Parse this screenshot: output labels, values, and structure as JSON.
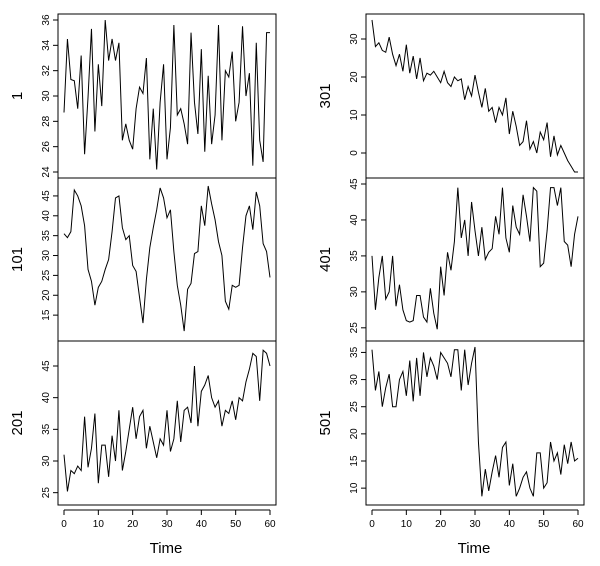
{
  "chart_data": {
    "type": "line",
    "x_axis": {
      "label": "Time",
      "range": [
        0,
        60
      ],
      "ticks": [
        0,
        10,
        20,
        30,
        40,
        50,
        60
      ]
    },
    "panels": [
      {
        "label": "1",
        "column": 0,
        "row": 0,
        "ylim": [
          24,
          36
        ],
        "yticks": [
          24,
          26,
          28,
          30,
          32,
          34,
          36
        ],
        "values": [
          28.7,
          34.5,
          31.3,
          31.2,
          29.0,
          33.2,
          25.4,
          29.9,
          35.3,
          27.2,
          32.5,
          29.2,
          36.0,
          32.8,
          34.5,
          32.8,
          34.2,
          26.5,
          27.8,
          26.5,
          25.8,
          29.0,
          30.7,
          30.2,
          33.0,
          25.0,
          29.0,
          24.2,
          29.5,
          32.5,
          25.0,
          27.5,
          35.6,
          28.5,
          29.0,
          27.8,
          26.2,
          35.0,
          29.5,
          27.0,
          33.7,
          25.6,
          31.6,
          26.2,
          28.5,
          35.6,
          26.5,
          32.0,
          31.5,
          33.5,
          28.0,
          29.5,
          35.5,
          30.0,
          31.8,
          24.5,
          34.2,
          26.5,
          24.8,
          35.0,
          35.0
        ]
      },
      {
        "label": "101",
        "column": 0,
        "row": 1,
        "ylim": [
          10,
          48
        ],
        "yticks": [
          15,
          20,
          25,
          30,
          35,
          40,
          45
        ],
        "values": [
          35.5,
          34.5,
          36.0,
          46.5,
          45.0,
          42.5,
          37.5,
          26.5,
          23.5,
          17.5,
          22.0,
          23.5,
          26.5,
          29.0,
          36.0,
          44.5,
          45.0,
          37.0,
          34.0,
          35.0,
          27.5,
          26.0,
          19.5,
          13.0,
          24.0,
          32.0,
          37.0,
          41.5,
          47.0,
          44.5,
          39.5,
          41.5,
          31.0,
          22.5,
          17.5,
          11.0,
          21.5,
          23.0,
          30.5,
          31.0,
          42.5,
          37.5,
          47.5,
          43.0,
          39.0,
          33.5,
          30.0,
          18.5,
          16.5,
          22.5,
          22.0,
          22.5,
          32.0,
          40.0,
          42.5,
          36.5,
          46.0,
          42.5,
          33.0,
          31.0,
          24.5
        ]
      },
      {
        "label": "201",
        "column": 0,
        "row": 2,
        "ylim": [
          24,
          48
        ],
        "yticks": [
          25,
          30,
          35,
          40,
          45
        ],
        "values": [
          31.0,
          25.2,
          28.5,
          28.0,
          29.2,
          28.5,
          37.0,
          29.0,
          32.0,
          37.5,
          26.5,
          32.5,
          32.5,
          27.5,
          34.0,
          30.0,
          38.0,
          28.5,
          31.5,
          35.0,
          38.5,
          33.5,
          37.0,
          38.0,
          32.0,
          35.5,
          33.0,
          30.5,
          33.5,
          32.5,
          38.0,
          31.5,
          33.5,
          39.5,
          33.0,
          38.0,
          38.5,
          36.0,
          45.0,
          35.5,
          41.0,
          42.0,
          43.5,
          40.0,
          38.5,
          39.5,
          35.5,
          38.0,
          37.5,
          39.5,
          36.5,
          40.0,
          39.5,
          42.5,
          44.5,
          47.0,
          46.5,
          39.5,
          47.5,
          47.0,
          45.0
        ]
      },
      {
        "label": "301",
        "column": 1,
        "row": 0,
        "ylim": [
          -5,
          35
        ],
        "yticks": [
          0,
          10,
          20,
          30
        ],
        "values": [
          35.0,
          28.0,
          29.0,
          27.0,
          26.5,
          30.5,
          26.0,
          23.0,
          26.0,
          21.5,
          28.5,
          21.0,
          25.5,
          19.5,
          25.0,
          19.0,
          21.0,
          20.5,
          21.5,
          20.0,
          18.5,
          21.5,
          18.5,
          17.5,
          20.0,
          19.0,
          19.5,
          14.0,
          17.5,
          15.0,
          20.5,
          16.0,
          12.0,
          17.0,
          11.0,
          12.0,
          8.0,
          12.0,
          10.0,
          14.5,
          5.0,
          11.0,
          7.0,
          2.0,
          3.0,
          8.5,
          1.0,
          3.0,
          0.0,
          5.5,
          3.5,
          8.0,
          -1.0,
          4.5,
          -0.5,
          2.0,
          0.0,
          -2.0,
          -3.5,
          -5.0,
          -5.0
        ]
      },
      {
        "label": "401",
        "column": 1,
        "row": 1,
        "ylim": [
          24,
          45
        ],
        "yticks": [
          25,
          30,
          35,
          40,
          45
        ],
        "values": [
          35.0,
          27.5,
          32.0,
          35.0,
          29.0,
          30.0,
          35.0,
          28.0,
          31.0,
          27.5,
          26.0,
          25.8,
          26.0,
          29.5,
          29.5,
          26.5,
          25.8,
          30.5,
          27.0,
          24.8,
          33.5,
          29.5,
          35.5,
          33.0,
          37.0,
          44.5,
          37.5,
          40.0,
          35.0,
          42.5,
          38.5,
          35.0,
          39.0,
          34.5,
          35.5,
          36.0,
          40.5,
          38.0,
          44.5,
          37.5,
          35.5,
          42.0,
          39.0,
          38.0,
          43.5,
          40.5,
          37.0,
          44.5,
          44.0,
          33.5,
          34.0,
          38.5,
          44.5,
          44.5,
          42.0,
          44.5,
          37.0,
          36.5,
          33.5,
          38.0,
          40.5
        ]
      },
      {
        "label": "501",
        "column": 1,
        "row": 2,
        "ylim": [
          8,
          36
        ],
        "yticks": [
          10,
          15,
          20,
          25,
          30,
          35
        ],
        "values": [
          35.5,
          28.0,
          31.5,
          25.0,
          28.5,
          31.0,
          25.0,
          25.0,
          30.0,
          31.5,
          27.0,
          33.5,
          26.0,
          34.0,
          27.0,
          35.0,
          30.5,
          34.0,
          32.5,
          30.0,
          35.0,
          34.0,
          33.0,
          30.5,
          35.5,
          35.5,
          28.0,
          35.5,
          29.0,
          33.0,
          36.0,
          18.5,
          8.5,
          13.5,
          9.5,
          13.0,
          16.0,
          12.0,
          17.5,
          18.5,
          10.5,
          14.5,
          8.5,
          10.0,
          12.0,
          13.0,
          10.0,
          8.5,
          16.5,
          16.5,
          10.0,
          11.0,
          18.5,
          15.0,
          16.5,
          12.5,
          18.0,
          14.5,
          18.5,
          15.0,
          15.5
        ]
      }
    ]
  }
}
